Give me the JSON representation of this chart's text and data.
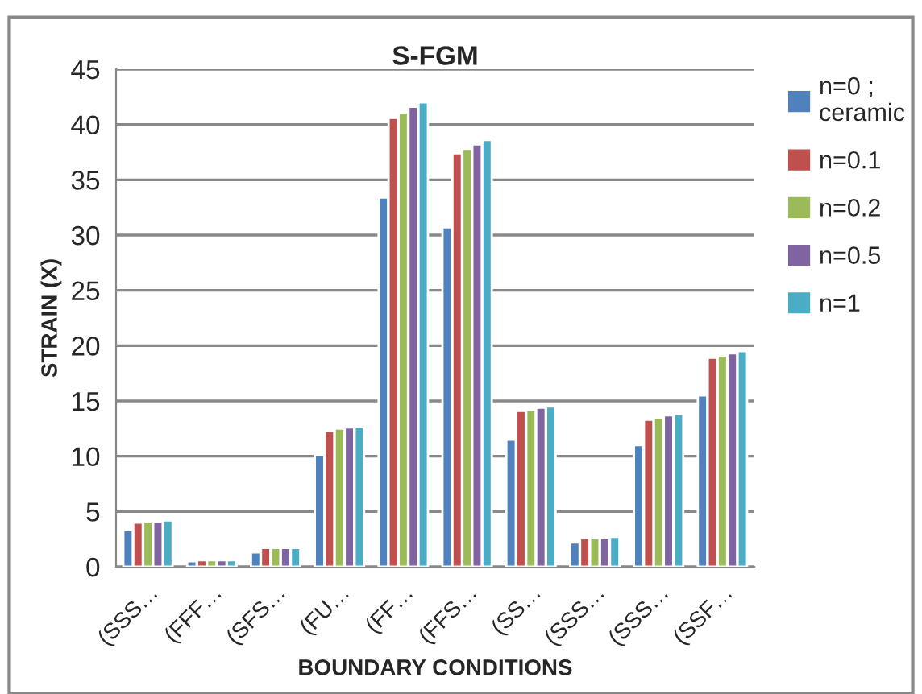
{
  "chart_data": {
    "type": "bar",
    "title": "S-FGM",
    "xlabel": "BOUNDARY CONDITIONS",
    "ylabel": "STRAIN (X)",
    "categories": [
      "(SSS…",
      "(FFF…",
      "(SFS…",
      "(FU…",
      "(FF…",
      "(FFS…",
      "(SS…",
      "(SSS…",
      "(SSS…",
      "(SSF…"
    ],
    "series": [
      {
        "name": "n=0 ;\nceramic",
        "color": "#4f81bd",
        "values": [
          3.3,
          0.5,
          1.3,
          10.1,
          33.4,
          30.7,
          11.5,
          2.2,
          11.0,
          15.5
        ]
      },
      {
        "name": "n=0.1",
        "color": "#c0504d",
        "values": [
          4.0,
          0.6,
          1.7,
          12.3,
          40.6,
          37.4,
          14.1,
          2.6,
          13.3,
          18.9
        ]
      },
      {
        "name": "n=0.2",
        "color": "#9bbb59",
        "values": [
          4.1,
          0.6,
          1.7,
          12.5,
          41.1,
          37.8,
          14.2,
          2.6,
          13.5,
          19.1
        ]
      },
      {
        "name": "n=0.5",
        "color": "#8064a2",
        "values": [
          4.1,
          0.6,
          1.7,
          12.6,
          41.6,
          38.2,
          14.4,
          2.6,
          13.7,
          19.3
        ]
      },
      {
        "name": "n=1",
        "color": "#4bacc6",
        "values": [
          4.2,
          0.6,
          1.7,
          12.7,
          42.0,
          38.6,
          14.5,
          2.7,
          13.8,
          19.5
        ]
      }
    ],
    "ylim": [
      0,
      45
    ],
    "yticks": [
      0,
      5,
      10,
      15,
      20,
      25,
      30,
      35,
      40,
      45
    ],
    "grid": "y",
    "legend": "right"
  }
}
